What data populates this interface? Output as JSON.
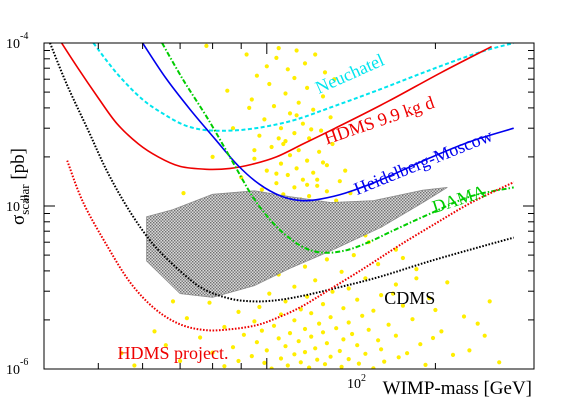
{
  "chart_data": {
    "type": "line",
    "title": "",
    "xlabel": "WIMP-mass [GeV]",
    "ylabel_main": "σ",
    "ylabel_sub": "scalar",
    "ylabel_unit": " [pb]",
    "x_scale": "log",
    "y_scale": "log",
    "xlim": [
      40,
      300
    ],
    "ylim": [
      1e-06,
      0.0001
    ],
    "grid": false,
    "legend": "none",
    "x_tick_labels": [
      {
        "value": 100,
        "base": "10",
        "exp": "2"
      }
    ],
    "y_tick_labels": [
      {
        "value": 0.0001,
        "base": "10",
        "exp": "-4"
      },
      {
        "value": 1e-05,
        "base": "10",
        "exp": "-5"
      },
      {
        "value": 1e-06,
        "base": "10",
        "exp": "-6"
      }
    ],
    "series": [
      {
        "name": "Neuchatel",
        "color": "#00e5ee",
        "style": "dashed",
        "x": [
          49,
          54,
          60,
          66,
          71,
          76,
          81,
          86,
          92,
          101,
          113,
          132,
          157,
          193,
          238,
          276
        ],
        "y": [
          0.0001,
          6.5e-05,
          4.5e-05,
          3.6e-05,
          3.15e-05,
          2.95e-05,
          2.9e-05,
          2.9e-05,
          2.95e-05,
          3.1e-05,
          3.4e-05,
          4.1e-05,
          5.1e-05,
          6.7e-05,
          8.7e-05,
          0.0001
        ]
      },
      {
        "name": "HDMS 9.9 kg d",
        "color": "#ee0000",
        "style": "solid",
        "x": [
          43,
          46,
          50,
          54,
          59,
          64,
          70,
          78,
          86,
          94,
          104,
          116,
          135,
          165,
          205,
          252
        ],
        "y": [
          0.0001,
          7e-05,
          4.6e-05,
          3.2e-05,
          2.4e-05,
          2e-05,
          1.75e-05,
          1.68e-05,
          1.7e-05,
          1.8e-05,
          2e-05,
          2.4e-05,
          3.1e-05,
          4.4e-05,
          6.6e-05,
          9.5e-05
        ]
      },
      {
        "name": "Heidelberg-Moscow",
        "color": "#0000ee",
        "style": "solid",
        "x": [
          60,
          66,
          73,
          81,
          89,
          97,
          106,
          115,
          124,
          138,
          160,
          196,
          232,
          276
        ],
        "y": [
          0.0001,
          6.1e-05,
          3.9e-05,
          2.55e-05,
          1.76e-05,
          1.36e-05,
          1.15e-05,
          1.08e-05,
          1.1e-05,
          1.2e-05,
          1.45e-05,
          1.98e-05,
          2.5e-05,
          3e-05
        ]
      },
      {
        "name": "DAMA",
        "color": "#00cc00",
        "style": "dash-dot",
        "x": [
          65,
          71,
          79,
          87,
          95,
          104,
          114,
          124,
          137,
          152,
          170,
          196,
          232,
          276
        ],
        "y": [
          0.0001,
          5.9e-05,
          3.3e-05,
          1.85e-05,
          1.1e-05,
          7.5e-06,
          5.8e-06,
          5.2e-06,
          5.3e-06,
          6e-06,
          7.2e-06,
          9e-06,
          1.15e-05,
          1.3e-05
        ]
      },
      {
        "name": "CDMS",
        "color": "#000000",
        "style": "dotted",
        "x": [
          41,
          44,
          48,
          52,
          57,
          63,
          70,
          77,
          86,
          95,
          105,
          118,
          136,
          160,
          196,
          240,
          276
        ],
        "y": [
          0.0001,
          5.5e-05,
          2.9e-05,
          1.6e-05,
          9.2e-06,
          5.7e-06,
          4e-06,
          3.1e-06,
          2.7e-06,
          2.6e-06,
          2.65e-06,
          2.85e-06,
          3.2e-06,
          3.7e-06,
          4.6e-06,
          5.6e-06,
          6.4e-06
        ]
      },
      {
        "name": "HDMS project.",
        "color": "#ee0000",
        "style": "dotted",
        "x": [
          44,
          47,
          52,
          57,
          63,
          70,
          78,
          87,
          96,
          104,
          115,
          130,
          150,
          172,
          200,
          232,
          276
        ],
        "y": [
          1.9e-05,
          1.05e-05,
          5.6e-06,
          3.4e-06,
          2.35e-06,
          1.88e-06,
          1.73e-06,
          1.76e-06,
          1.86e-06,
          2.05e-06,
          2.4e-06,
          3.1e-06,
          4.2e-06,
          5.7e-06,
          7.8e-06,
          1.05e-05,
          1.4e-05
        ]
      }
    ],
    "curve_labels": [
      {
        "series": "Neuchatel",
        "text": "Neuchatel",
        "at": [
          142,
          6e-05
        ],
        "angle": -24
      },
      {
        "series": "HDMS 9.9 kg d",
        "text": "HDMS 9.9 kg d",
        "at": [
          160,
          3.1e-05
        ],
        "angle": -19
      },
      {
        "series": "Heidelberg-Moscow",
        "text": "Heidelberg-Moscow",
        "at": [
          192,
          1.72e-05
        ],
        "angle": -22
      },
      {
        "series": "DAMA",
        "text": "DAMA",
        "at": [
          222,
          1.02e-05
        ],
        "angle": -18
      },
      {
        "series": "CDMS",
        "text": "CDMS",
        "at": [
          180,
          2.5e-06
        ],
        "angle": 0
      },
      {
        "series": "HDMS project.",
        "text": "HDMS project.",
        "at": [
          68,
          1.15e-06
        ],
        "angle": 0
      }
    ],
    "theory_region": {
      "description": "gray hatched band",
      "color": "#8c8c8c",
      "upper": {
        "x": [
          61,
          68,
          80,
          95,
          110,
          130,
          155,
          190,
          210
        ],
        "y": [
          8.6e-06,
          9.5e-06,
          1.18e-05,
          1.24e-05,
          1.14e-05,
          1.05e-05,
          1.08e-05,
          1.25e-05,
          1.3e-05
        ]
      },
      "lower": {
        "x": [
          210,
          190,
          160,
          130,
          110,
          95,
          80,
          70,
          61
        ],
        "y": [
          1.3e-05,
          1.05e-05,
          7.4e-06,
          5.3e-06,
          4.15e-06,
          3.25e-06,
          2.75e-06,
          2.9e-06,
          4.6e-06
        ]
      }
    },
    "scatter": {
      "description": "yellow points (SUSY model predictions)",
      "color": "#ffee00",
      "points": [
        [
          78,
          9.6e-05
        ],
        [
          105,
          9.3e-05
        ],
        [
          113,
          9e-05
        ],
        [
          92,
          8.5e-05
        ],
        [
          104,
          8.1e-05
        ],
        [
          122,
          8.5e-05
        ],
        [
          117,
          7.5e-05
        ],
        [
          100,
          7.2e-05
        ],
        [
          109,
          6.9e-05
        ],
        [
          127,
          6.6e-05
        ],
        [
          96,
          6.3e-05
        ],
        [
          112,
          6.1e-05
        ],
        [
          132,
          6e-05
        ],
        [
          101,
          5.6e-05
        ],
        [
          118,
          5.3e-05
        ],
        [
          85,
          5.1e-05
        ],
        [
          108,
          4.9e-05
        ],
        [
          126,
          4.7e-05
        ],
        [
          94,
          4.5e-05
        ],
        [
          114,
          4.3e-05
        ],
        [
          103,
          4.1e-05
        ],
        [
          121,
          3.9e-05
        ],
        [
          110,
          3.7e-05
        ],
        [
          130,
          3.5e-05
        ],
        [
          99,
          3.4e-05
        ],
        [
          116,
          3.2e-05
        ],
        [
          106,
          3e-05
        ],
        [
          125,
          2.9e-05
        ],
        [
          112,
          2.8e-05
        ],
        [
          97,
          2.7e-05
        ],
        [
          119,
          2.6e-05
        ],
        [
          108,
          2.5e-05
        ],
        [
          131,
          2.4e-05
        ],
        [
          102,
          2.3e-05
        ],
        [
          114,
          2.2e-05
        ],
        [
          124,
          2.15e-05
        ],
        [
          110,
          2.05e-05
        ],
        [
          95,
          1.95e-05
        ],
        [
          118,
          1.9e-05
        ],
        [
          106,
          1.82e-05
        ],
        [
          128,
          1.78e-05
        ],
        [
          113,
          1.7e-05
        ],
        [
          100,
          1.65e-05
        ],
        [
          121,
          1.6e-05
        ],
        [
          109,
          1.55e-05
        ],
        [
          90,
          1.5e-05
        ],
        [
          116,
          1.45e-05
        ],
        [
          135,
          1.42e-05
        ],
        [
          104,
          1.38e-05
        ],
        [
          123,
          1.33e-05
        ],
        [
          112,
          1.3e-05
        ],
        [
          98,
          1.26e-05
        ],
        [
          128,
          1.23e-05
        ],
        [
          141,
          1.2e-05
        ],
        [
          107,
          1.18e-05
        ],
        [
          119,
          1.15e-05
        ],
        [
          88,
          1.12e-05
        ],
        [
          115,
          1.1e-05
        ],
        [
          133,
          1.08e-05
        ],
        [
          103,
          1.05e-05
        ],
        [
          126,
          1.03e-05
        ],
        [
          150,
          1e-05
        ],
        [
          111,
          9.8e-06
        ],
        [
          94,
          9.5e-06
        ],
        [
          138,
          9.3e-06
        ],
        [
          121,
          9.1e-06
        ],
        [
          100,
          8.9e-06
        ],
        [
          145,
          8.6e-06
        ],
        [
          113,
          8.4e-06
        ],
        [
          130,
          8.2e-06
        ],
        [
          85,
          8e-06
        ],
        [
          106,
          7.8e-06
        ],
        [
          160,
          7.6e-06
        ],
        [
          124,
          7.4e-06
        ],
        [
          96,
          7.2e-06
        ],
        [
          140,
          7e-06
        ],
        [
          115,
          6.8e-06
        ],
        [
          77,
          6.6e-06
        ],
        [
          135,
          6.4e-06
        ],
        [
          104,
          6.2e-06
        ],
        [
          152,
          6e-06
        ],
        [
          120,
          5.8e-06
        ],
        [
          91,
          5.6e-06
        ],
        [
          170,
          5.4e-06
        ],
        [
          110,
          5.2e-06
        ],
        [
          143,
          5e-06
        ],
        [
          82,
          4.85e-06
        ],
        [
          128,
          4.7e-06
        ],
        [
          99,
          4.55e-06
        ],
        [
          158,
          4.4e-06
        ],
        [
          117,
          4.25e-06
        ],
        [
          185,
          4.1e-06
        ],
        [
          136,
          3.95e-06
        ],
        [
          105,
          3.8e-06
        ],
        [
          74,
          3.7e-06
        ],
        [
          150,
          3.6e-06
        ],
        [
          122,
          3.5e-06
        ],
        [
          93,
          3.4e-06
        ],
        [
          170,
          3.3e-06
        ],
        [
          112,
          3.2e-06
        ],
        [
          140,
          3.12e-06
        ],
        [
          86,
          3.05e-06
        ],
        [
          131,
          2.98e-06
        ],
        [
          101,
          2.9e-06
        ],
        [
          160,
          2.84e-06
        ],
        [
          118,
          2.78e-06
        ],
        [
          195,
          2.72e-06
        ],
        [
          145,
          2.66e-06
        ],
        [
          108,
          2.6e-06
        ],
        [
          79,
          2.55e-06
        ],
        [
          126,
          2.5e-06
        ],
        [
          175,
          2.45e-06
        ],
        [
          97,
          2.4e-06
        ],
        [
          137,
          2.36e-06
        ],
        [
          115,
          2.32e-06
        ],
        [
          155,
          2.28e-06
        ],
        [
          89,
          2.24e-06
        ],
        [
          120,
          2.2e-06
        ],
        [
          106,
          2.16e-06
        ],
        [
          148,
          2.12e-06
        ],
        [
          130,
          2.08e-06
        ],
        [
          72,
          2.05e-06
        ],
        [
          182,
          2.02e-06
        ],
        [
          112,
          1.99e-06
        ],
        [
          95,
          1.96e-06
        ],
        [
          140,
          1.93e-06
        ],
        [
          124,
          1.9e-06
        ],
        [
          165,
          1.87e-06
        ],
        [
          103,
          1.84e-06
        ],
        [
          84,
          1.81e-06
        ],
        [
          133,
          1.78e-06
        ],
        [
          117,
          1.76e-06
        ],
        [
          152,
          1.74e-06
        ],
        [
          98,
          1.72e-06
        ],
        [
          205,
          1.7e-06
        ],
        [
          126,
          1.68e-06
        ],
        [
          110,
          1.66e-06
        ],
        [
          142,
          1.64e-06
        ],
        [
          91,
          1.62e-06
        ],
        [
          170,
          1.6e-06
        ],
        [
          120,
          1.58e-06
        ],
        [
          76,
          1.56e-06
        ],
        [
          105,
          1.54e-06
        ],
        [
          137,
          1.52e-06
        ],
        [
          158,
          1.5e-06
        ],
        [
          114,
          1.48e-06
        ],
        [
          96,
          1.46e-06
        ],
        [
          128,
          1.44e-06
        ],
        [
          188,
          1.42e-06
        ],
        [
          145,
          1.4e-06
        ],
        [
          108,
          1.38e-06
        ],
        [
          87,
          1.36e-06
        ],
        [
          122,
          1.34e-06
        ],
        [
          160,
          1.32e-06
        ],
        [
          100,
          1.3e-06
        ],
        [
          135,
          1.29e-06
        ],
        [
          117,
          1.27e-06
        ],
        [
          80,
          1.26e-06
        ],
        [
          150,
          1.24e-06
        ],
        [
          112,
          1.23e-06
        ],
        [
          215,
          1.22e-06
        ],
        [
          94,
          1.2e-06
        ],
        [
          130,
          1.19e-06
        ],
        [
          172,
          1.18e-06
        ],
        [
          106,
          1.16e-06
        ],
        [
          140,
          1.15e-06
        ],
        [
          123,
          1.14e-06
        ],
        [
          89,
          1.12e-06
        ],
        [
          162,
          1.11e-06
        ],
        [
          115,
          1.1e-06
        ],
        [
          99,
          1.09e-06
        ],
        [
          146,
          1.08e-06
        ],
        [
          127,
          1.07e-06
        ],
        [
          192,
          1.06e-06
        ],
        [
          109,
          1.05e-06
        ],
        [
          84,
          1.04e-06
        ],
        [
          136,
          1.03e-06
        ],
        [
          119,
          1.02e-06
        ],
        [
          155,
          1.01e-06
        ],
        [
          102,
          1.005e-06
        ],
        [
          58,
          1.05e-06
        ],
        [
          66,
          1.4e-06
        ],
        [
          70,
          1.12e-06
        ],
        [
          63,
          1.7e-06
        ],
        [
          55,
          1.25e-06
        ],
        [
          230,
          1.3e-06
        ],
        [
          245,
          1.6e-06
        ],
        [
          260,
          1.1e-06
        ],
        [
          225,
          2.1e-06
        ],
        [
          250,
          2.6e-06
        ],
        [
          210,
          3.4e-06
        ],
        [
          238,
          1.9e-06
        ],
        [
          200,
          2.3e-06
        ],
        [
          198,
          1.55e-06
        ],
        [
          178,
          1.25e-06
        ],
        [
          168,
          2.9e-06
        ],
        [
          185,
          3.6e-06
        ],
        [
          175,
          4.8e-06
        ],
        [
          150,
          6.6e-06
        ],
        [
          165,
          8.4e-06
        ],
        [
          68,
          2.6e-06
        ],
        [
          75,
          4.3e-06
        ],
        [
          82,
          6e-06
        ],
        [
          71,
          1.2e-05
        ],
        [
          80,
          2e-05
        ],
        [
          87,
          3e-05
        ],
        [
          93,
          4e-05
        ],
        [
          118,
          1.35e-05
        ],
        [
          123,
          1.45e-05
        ],
        [
          104,
          1.58e-05
        ],
        [
          126,
          1.85e-05
        ],
        [
          138,
          1.65e-05
        ],
        [
          113,
          3.6e-05
        ],
        [
          105,
          2.6e-05
        ],
        [
          95,
          2.2e-05
        ],
        [
          107,
          2.4e-05
        ],
        [
          120,
          2.95e-05
        ]
      ]
    }
  }
}
